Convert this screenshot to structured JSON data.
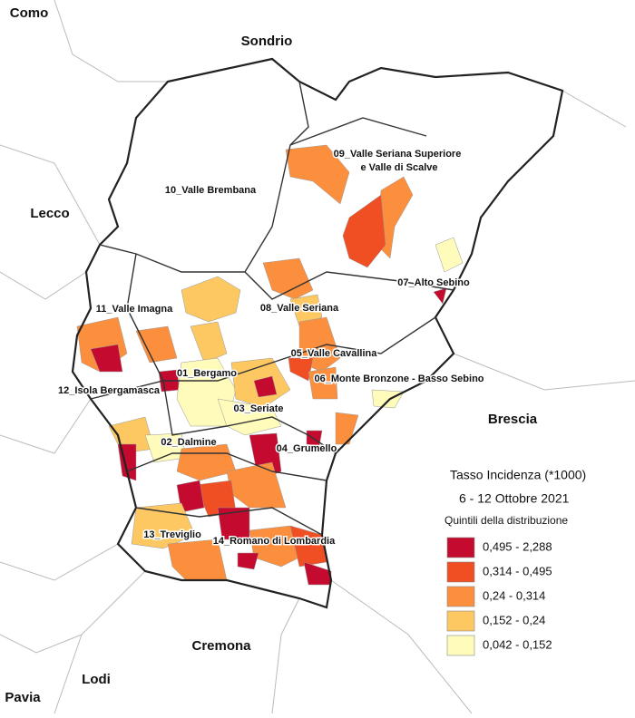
{
  "neighbors": [
    "Como",
    "Sondrio",
    "Lecco",
    "Brescia",
    "Cremona",
    "Lodi",
    "Pavia"
  ],
  "districts": [
    "01_Bergamo",
    "02_Dalmine",
    "03_Seriate",
    "04_Grumello",
    "05_Valle Cavallina",
    "06_Monte Bronzone - Basso Sebino",
    "07_Alto Sebino",
    "08_Valle Seriana",
    "09_Valle Seriana Superiore",
    "e Valle di Scalve",
    "10_Valle Brembana",
    "11_Valle Imagna",
    "12_Isola Bergamasca",
    "13_Treviglio",
    "14_Romano di Lombardia"
  ],
  "legend": {
    "title": "Tasso Incidenza (*1000)",
    "period": "6 - 12 Ottobre 2021",
    "subtitle": "Quintili della distribuzione",
    "classes": [
      {
        "label": "0,495 - 2,288",
        "color": "#c40a2e"
      },
      {
        "label": "0,314 - 0,495",
        "color": "#f04e23"
      },
      {
        "label": "0,24 - 0,314",
        "color": "#fb8f3e"
      },
      {
        "label": "0,152 - 0,24",
        "color": "#fdc862"
      },
      {
        "label": "0,042 - 0,152",
        "color": "#fefbbb"
      }
    ]
  }
}
